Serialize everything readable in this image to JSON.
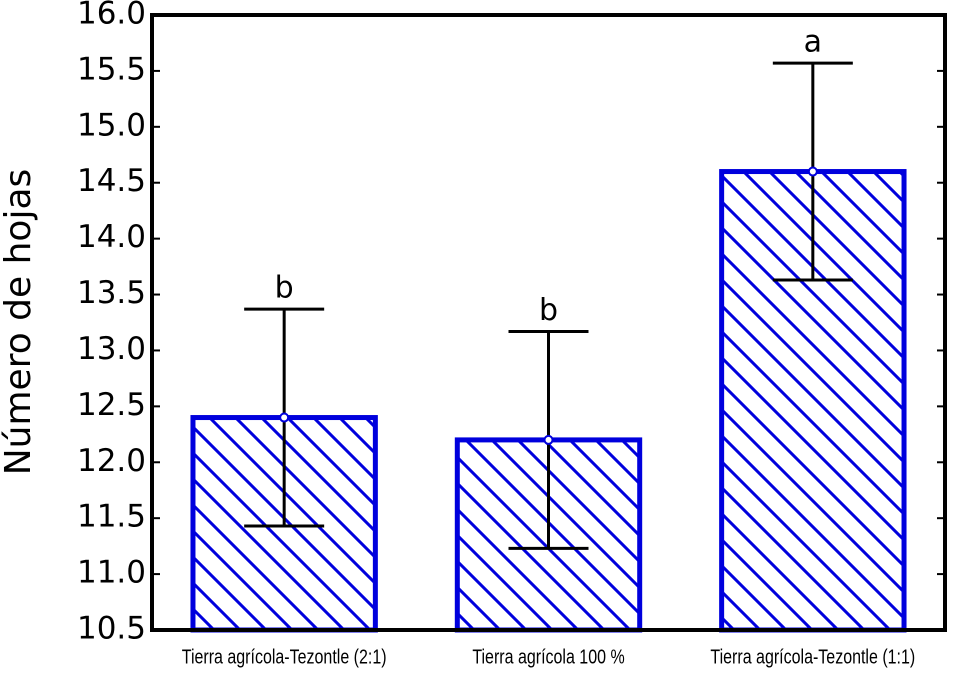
{
  "chart_data": {
    "type": "bar",
    "y_label": "Número de hojas",
    "categories": [
      "Tierra agrícola-Tezontle (2:1)",
      "Tierra agrícola 100 %",
      "Tierra agrícola-Tezontle (1:1)"
    ],
    "values": [
      12.4,
      12.2,
      14.6
    ],
    "errors": [
      0.97,
      0.97,
      0.97
    ],
    "annotations": [
      "b",
      "b",
      "a"
    ],
    "color": "#0000dd",
    "hatch": true,
    "ylim": [
      10.5,
      16.0
    ],
    "yticks": [
      10.5,
      {
        "value": 11,
        "label": "11.0"
      },
      11.5,
      {
        "value": 12,
        "label": "12.0"
      },
      12.5,
      {
        "value": 13,
        "label": "13.0"
      },
      13.5,
      {
        "value": 14,
        "label": "14.0"
      },
      14.5,
      {
        "value": 15,
        "label": "15.0"
      },
      15.5,
      {
        "value": 16,
        "label": "16.0"
      }
    ]
  }
}
